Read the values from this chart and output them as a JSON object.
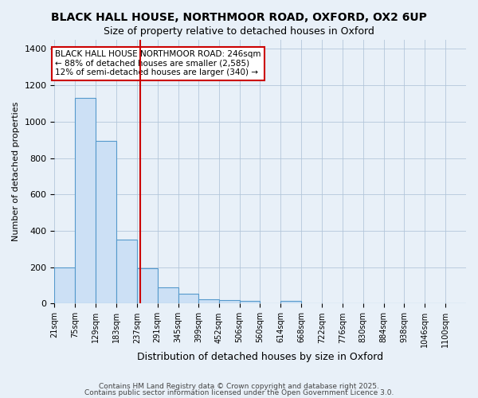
{
  "title1": "BLACK HALL HOUSE, NORTHMOOR ROAD, OXFORD, OX2 6UP",
  "title2": "Size of property relative to detached houses in Oxford",
  "xlabel": "Distribution of detached houses by size in Oxford",
  "ylabel": "Number of detached properties",
  "bin_labels": [
    "21sqm",
    "75sqm",
    "129sqm",
    "183sqm",
    "237sqm",
    "291sqm",
    "345sqm",
    "399sqm",
    "452sqm",
    "506sqm",
    "560sqm",
    "614sqm",
    "668sqm",
    "722sqm",
    "776sqm",
    "830sqm",
    "884sqm",
    "938sqm",
    "1046sqm",
    "1100sqm"
  ],
  "bin_edges": [
    21,
    75,
    129,
    183,
    237,
    291,
    345,
    399,
    452,
    506,
    560,
    614,
    668,
    722,
    776,
    830,
    884,
    938,
    992,
    1046,
    1100
  ],
  "bar_heights": [
    197,
    1130,
    893,
    350,
    195,
    90,
    55,
    25,
    20,
    15,
    0,
    15,
    0,
    0,
    0,
    0,
    0,
    0,
    0,
    0
  ],
  "bar_color": "#cce0f5",
  "bar_edge_color": "#5599cc",
  "red_line_x": 246,
  "annotation_title": "BLACK HALL HOUSE NORTHMOOR ROAD: 246sqm",
  "annotation_line2": "← 88% of detached houses are smaller (2,585)",
  "annotation_line3": "12% of semi-detached houses are larger (340) →",
  "annotation_box_color": "#ffffff",
  "annotation_border_color": "#cc0000",
  "footer1": "Contains HM Land Registry data © Crown copyright and database right 2025.",
  "footer2": "Contains public sector information licensed under the Open Government Licence 3.0.",
  "bg_color": "#e8f0f8",
  "ylim": [
    0,
    1450
  ],
  "title_fontsize": 10,
  "subtitle_fontsize": 9
}
